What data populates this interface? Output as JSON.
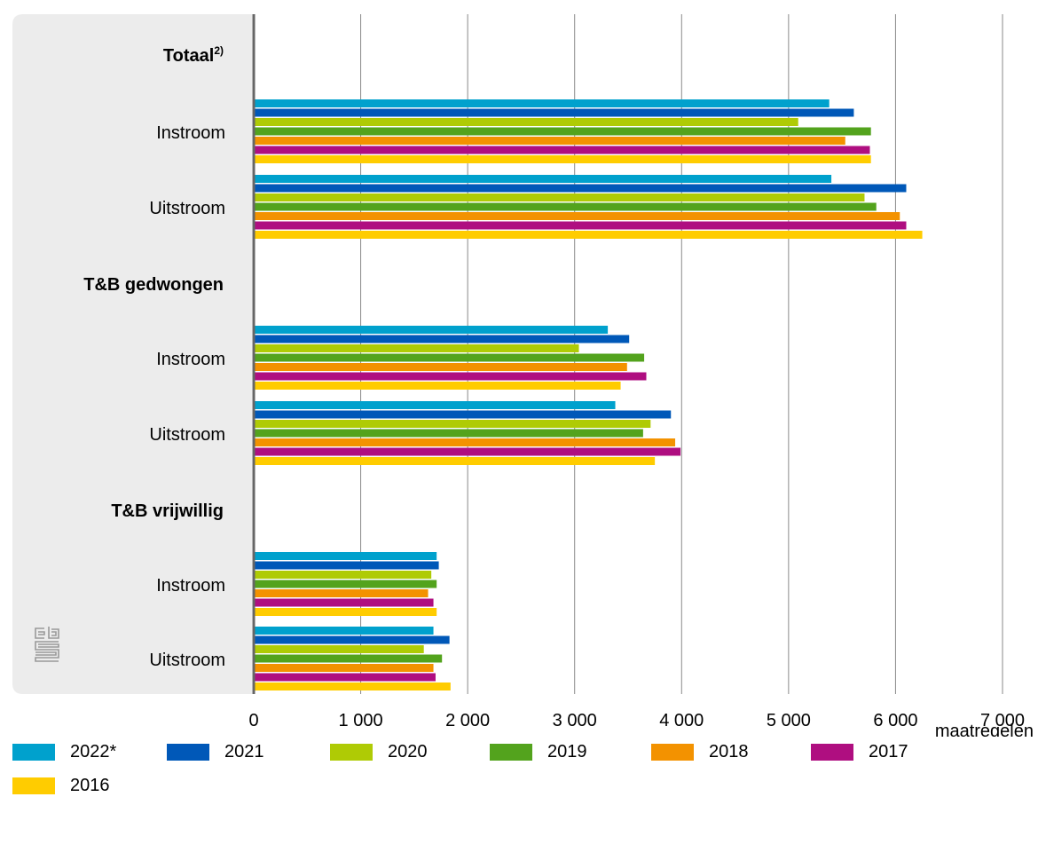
{
  "chart_data": {
    "type": "bar",
    "orientation": "horizontal",
    "xlabel": "maatregelen",
    "xlim": [
      0,
      7000
    ],
    "xticks": [
      0,
      1000,
      2000,
      3000,
      4000,
      5000,
      6000,
      7000
    ],
    "xtick_labels": [
      "0",
      "1 000",
      "2 000",
      "3 000",
      "4 000",
      "5 000",
      "6 000",
      "7 000"
    ],
    "grid": true,
    "legend_position": "bottom",
    "groups": [
      {
        "header": "Totaal",
        "header_sup": "2)",
        "categories": [
          "Instroom",
          "Uitstroom"
        ]
      },
      {
        "header": "T&B gedwongen",
        "categories": [
          "Instroom",
          "Uitstroom"
        ]
      },
      {
        "header": "T&B vrijwillig",
        "categories": [
          "Instroom",
          "Uitstroom"
        ]
      }
    ],
    "series": [
      {
        "name": "2022*",
        "color": "#00a1cd",
        "values": [
          5380,
          5400,
          3310,
          3380,
          1710,
          1680
        ]
      },
      {
        "name": "2021",
        "color": "#0058b8",
        "values": [
          5610,
          6100,
          3510,
          3900,
          1730,
          1830
        ]
      },
      {
        "name": "2020",
        "color": "#afcb05",
        "values": [
          5090,
          5710,
          3040,
          3710,
          1660,
          1590
        ]
      },
      {
        "name": "2019",
        "color": "#53a31d",
        "values": [
          5770,
          5820,
          3650,
          3640,
          1710,
          1760
        ]
      },
      {
        "name": "2018",
        "color": "#f39200",
        "values": [
          5530,
          6040,
          3490,
          3940,
          1630,
          1680
        ]
      },
      {
        "name": "2017",
        "color": "#af0e80",
        "values": [
          5760,
          6100,
          3670,
          3990,
          1680,
          1700
        ]
      },
      {
        "name": "2016",
        "color": "#ffcc00",
        "values": [
          5770,
          6250,
          3430,
          3750,
          1710,
          1840
        ]
      }
    ]
  }
}
